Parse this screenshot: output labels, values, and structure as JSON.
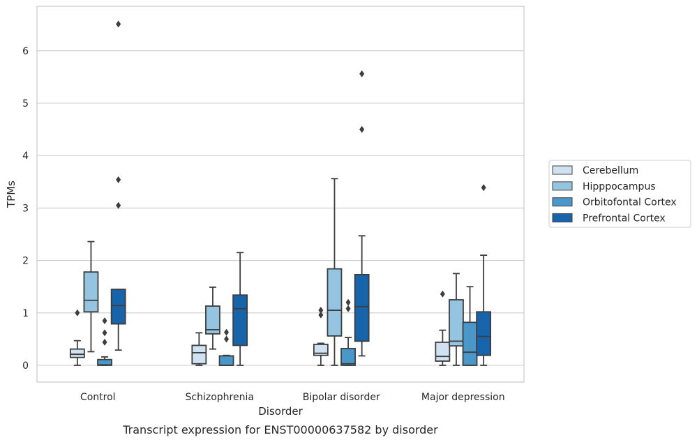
{
  "caption": "Transcript expression for ENST00000637582 by disorder",
  "chart_data": {
    "type": "box",
    "xlabel": "Disorder",
    "ylabel": "TPMs",
    "ylim": [
      -0.32,
      6.85
    ],
    "yticks": [
      0,
      1,
      2,
      3,
      4,
      5,
      6
    ],
    "grid": "horizontal",
    "legend_position": "right",
    "categories": [
      "Control",
      "Schizophrenia",
      "Bipolar disorder",
      "Major depression"
    ],
    "series": [
      {
        "name": "Cerebellum",
        "color": "#d0e1f2",
        "boxes": [
          {
            "whisker_low": 0.0,
            "q1": 0.15,
            "median": 0.21,
            "q3": 0.31,
            "whisker_high": 0.47,
            "outliers": [
              1.0
            ]
          },
          {
            "whisker_low": 0.0,
            "q1": 0.03,
            "median": 0.24,
            "q3": 0.38,
            "whisker_high": 0.62,
            "outliers": []
          },
          {
            "whisker_low": 0.0,
            "q1": 0.19,
            "median": 0.23,
            "q3": 0.4,
            "whisker_high": 0.42,
            "outliers": [
              1.05,
              0.96
            ]
          },
          {
            "whisker_low": 0.0,
            "q1": 0.08,
            "median": 0.17,
            "q3": 0.44,
            "whisker_high": 0.67,
            "outliers": [
              1.36
            ]
          }
        ]
      },
      {
        "name": "Hipppocampus",
        "color": "#94c4df",
        "boxes": [
          {
            "whisker_low": 0.26,
            "q1": 1.02,
            "median": 1.24,
            "q3": 1.78,
            "whisker_high": 2.36,
            "outliers": []
          },
          {
            "whisker_low": 0.31,
            "q1": 0.6,
            "median": 0.68,
            "q3": 1.13,
            "whisker_high": 1.49,
            "outliers": []
          },
          {
            "whisker_low": 0.0,
            "q1": 0.56,
            "median": 1.05,
            "q3": 1.84,
            "whisker_high": 3.56,
            "outliers": []
          },
          {
            "whisker_low": 0.0,
            "q1": 0.37,
            "median": 0.46,
            "q3": 1.25,
            "whisker_high": 1.75,
            "outliers": []
          }
        ]
      },
      {
        "name": "Orbitofontal Cortex",
        "color": "#4a98c9",
        "boxes": [
          {
            "whisker_low": 0.0,
            "q1": 0.0,
            "median": 0.01,
            "q3": 0.11,
            "whisker_high": 0.16,
            "outliers": [
              0.85,
              0.62,
              0.44
            ]
          },
          {
            "whisker_low": 0.0,
            "q1": 0.0,
            "median": 0.0,
            "q3": 0.18,
            "whisker_high": 0.19,
            "outliers": [
              0.63,
              0.5
            ]
          },
          {
            "whisker_low": 0.0,
            "q1": 0.0,
            "median": 0.03,
            "q3": 0.32,
            "whisker_high": 0.53,
            "outliers": [
              1.2,
              1.08
            ]
          },
          {
            "whisker_low": 0.0,
            "q1": 0.0,
            "median": 0.25,
            "q3": 0.82,
            "whisker_high": 1.5,
            "outliers": []
          }
        ]
      },
      {
        "name": "Prefrontal Cortex",
        "color": "#1764ab",
        "boxes": [
          {
            "whisker_low": 0.29,
            "q1": 0.79,
            "median": 1.14,
            "q3": 1.45,
            "whisker_high": 1.45,
            "outliers": [
              6.51,
              3.54,
              3.05
            ]
          },
          {
            "whisker_low": 0.0,
            "q1": 0.38,
            "median": 1.08,
            "q3": 1.34,
            "whisker_high": 2.15,
            "outliers": []
          },
          {
            "whisker_low": 0.18,
            "q1": 0.46,
            "median": 1.12,
            "q3": 1.73,
            "whisker_high": 2.47,
            "outliers": [
              5.56,
              4.5
            ]
          },
          {
            "whisker_low": 0.0,
            "q1": 0.19,
            "median": 0.55,
            "q3": 1.02,
            "whisker_high": 2.1,
            "outliers": [
              3.39
            ]
          }
        ]
      }
    ]
  }
}
